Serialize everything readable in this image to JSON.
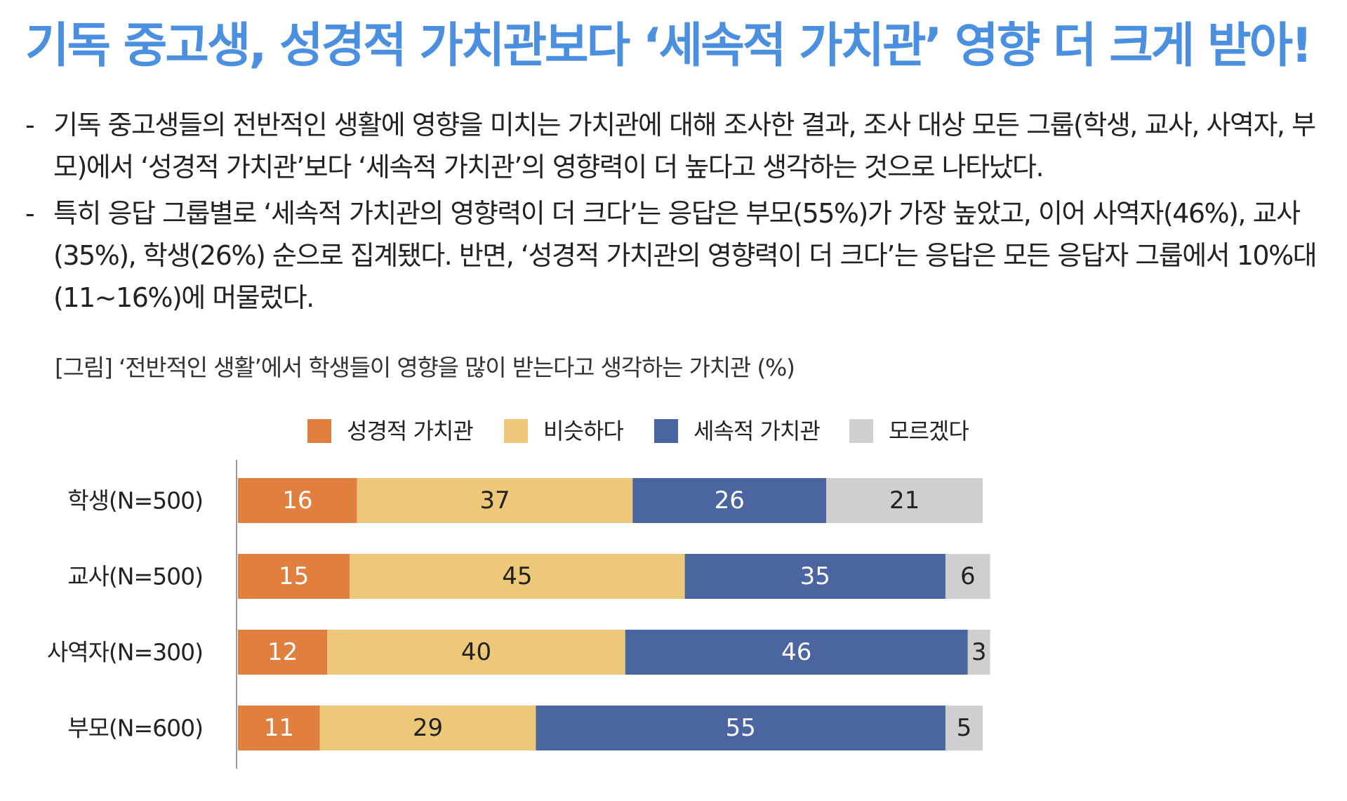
{
  "title": "기독 중고생, 성경적 가치관보다 ‘세속적 가치관’ 영향 더 크게 받아!",
  "bullets": [
    "기독 중고생들의 전반적인 생활에 영향을 미치는 가치관에 대해 조사한 결과, 조사 대상 모든 그룹(학생, 교사, 사역자, 부모)에서 ‘성경적 가치관’보다 ‘세속적 가치관’의 영향력이 더 높다고 생각하는 것으로 나타났다.",
    "특히 응답 그룹별로 ‘세속적 가치관의 영향력이 더 크다’는 응답은 부모(55%)가 가장 높았고, 이어 사역자(46%), 교사(35%), 학생(26%) 순으로 집계됐다. 반면, ‘성경적 가치관의 영향력이 더 크다’는 응답은 모든 응답자 그룹에서 10%대(11~16%)에 머물렀다."
  ],
  "bullet_marker": "-",
  "caption": "[그림] ‘전반적인 생활’에서 학생들이 영향을 많이 받는다고 생각하는 가치관 (%)",
  "chart_data": {
    "type": "bar",
    "orientation": "horizontal",
    "stacked": true,
    "categories": [
      "학생(N=500)",
      "교사(N=500)",
      "사역자(N=300)",
      "부모(N=600)"
    ],
    "series": [
      {
        "name": "성경적 가치관",
        "color": "#e07f3e",
        "values": [
          16,
          15,
          12,
          11
        ]
      },
      {
        "name": "비슷하다",
        "color": "#ecc878",
        "values": [
          37,
          45,
          40,
          29
        ]
      },
      {
        "name": "세속적 가치관",
        "color": "#4a65a0",
        "values": [
          26,
          35,
          46,
          55
        ]
      },
      {
        "name": "모르겠다",
        "color": "#cfcfcf",
        "values": [
          21,
          6,
          3,
          5
        ]
      }
    ],
    "xlim": [
      0,
      100
    ],
    "legend_position": "top",
    "grid": false,
    "data_labels": true
  }
}
